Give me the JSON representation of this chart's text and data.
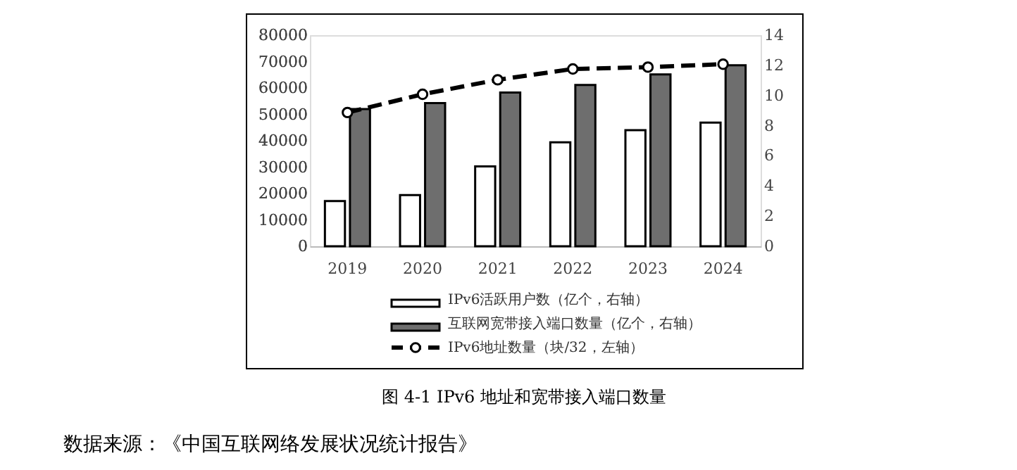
{
  "chart_data": {
    "type": "bar",
    "title": "图 4-1 IPv6 地址和宽带接入端口数量",
    "categories": [
      "2019",
      "2020",
      "2021",
      "2022",
      "2023",
      "2024"
    ],
    "series": [
      {
        "name": "IPv6活跃用户数（亿个，右轴）",
        "axis": "y2",
        "color": "#ffffff",
        "values": [
          3.0,
          3.4,
          5.3,
          6.9,
          7.7,
          8.2
        ]
      },
      {
        "name": "互联网宽带接入端口数量（亿个，右轴）",
        "axis": "y2",
        "color": "#6e6e6e",
        "values": [
          9.1,
          9.5,
          10.2,
          10.7,
          11.4,
          12.0
        ]
      },
      {
        "name": "IPv6地址数量（块/32，左轴）",
        "type": "line",
        "axis": "y",
        "color": "#000000",
        "marker": "circle",
        "line_style": "dashed",
        "values": [
          50700,
          57600,
          63100,
          67200,
          67900,
          69000
        ]
      }
    ],
    "ylim": [
      0,
      80000
    ],
    "yticks": [
      0,
      10000,
      20000,
      30000,
      40000,
      50000,
      60000,
      70000,
      80000
    ],
    "y2lim": [
      0,
      14
    ],
    "y2ticks": [
      0,
      2,
      4,
      6,
      8,
      10,
      12,
      14
    ],
    "grid": false,
    "legend": "bottom",
    "annotations": [
      "数据来源：《中国互联网络发展状况统计报告》"
    ]
  }
}
